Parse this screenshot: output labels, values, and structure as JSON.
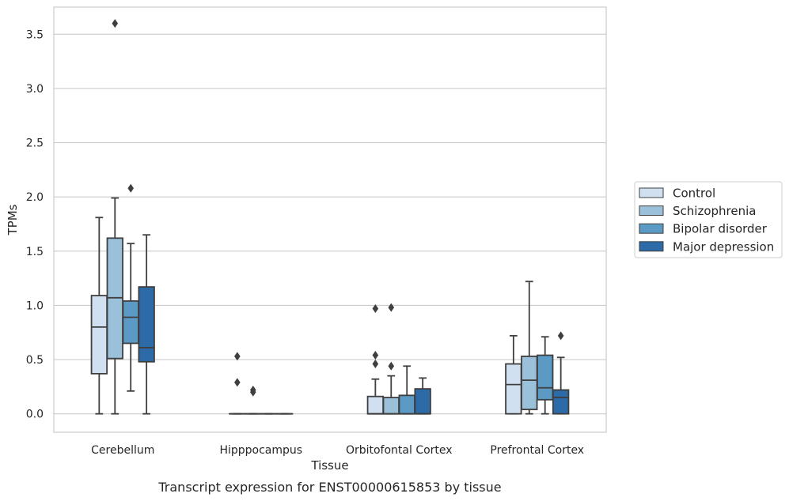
{
  "chart_data": {
    "type": "box",
    "caption": "Transcript expression for ENST00000615853 by tissue",
    "xlabel": "Tissue",
    "ylabel": "TPMs",
    "ylim": [
      -0.17,
      3.75
    ],
    "yticks": [
      0.0,
      0.5,
      1.0,
      1.5,
      2.0,
      2.5,
      3.0,
      3.5
    ],
    "ytick_labels": [
      "0.0",
      "0.5",
      "1.0",
      "1.5",
      "2.0",
      "2.5",
      "3.0",
      "3.5"
    ],
    "grid": "horizontal",
    "legend_placement": "right-center",
    "categories": [
      "Cerebellum",
      "Hipppocampus",
      "Orbitofontal Cortex",
      "Prefrontal Cortex"
    ],
    "series": [
      {
        "name": "Control",
        "color": "#d0e0f0",
        "boxes": [
          {
            "whislo": 0.0,
            "q1": 0.37,
            "med": 0.8,
            "q3": 1.09,
            "whishi": 1.81,
            "fliers": []
          },
          {
            "whislo": 0.0,
            "q1": 0.0,
            "med": 0.0,
            "q3": 0.0,
            "whishi": 0.0,
            "fliers": [
              0.53,
              0.29
            ]
          },
          {
            "whislo": 0.0,
            "q1": 0.0,
            "med": 0.0,
            "q3": 0.16,
            "whishi": 0.32,
            "fliers": [
              0.97,
              0.54,
              0.46
            ]
          },
          {
            "whislo": 0.0,
            "q1": 0.0,
            "med": 0.27,
            "q3": 0.46,
            "whishi": 0.72,
            "fliers": []
          }
        ]
      },
      {
        "name": "Schizophrenia",
        "color": "#9bc1da",
        "boxes": [
          {
            "whislo": 0.0,
            "q1": 0.51,
            "med": 1.07,
            "q3": 1.62,
            "whishi": 1.99,
            "fliers": [
              3.6
            ]
          },
          {
            "whislo": 0.0,
            "q1": 0.0,
            "med": 0.0,
            "q3": 0.0,
            "whishi": 0.0,
            "fliers": [
              0.22,
              0.2
            ]
          },
          {
            "whislo": 0.0,
            "q1": 0.0,
            "med": 0.0,
            "q3": 0.15,
            "whishi": 0.35,
            "fliers": [
              0.98,
              0.44
            ]
          },
          {
            "whislo": 0.0,
            "q1": 0.04,
            "med": 0.31,
            "q3": 0.53,
            "whishi": 1.22,
            "fliers": []
          }
        ]
      },
      {
        "name": "Bipolar disorder",
        "color": "#5b9ac4",
        "boxes": [
          {
            "whislo": 0.21,
            "q1": 0.65,
            "med": 0.89,
            "q3": 1.04,
            "whishi": 1.57,
            "fliers": [
              2.08
            ]
          },
          {
            "whislo": 0.0,
            "q1": 0.0,
            "med": 0.0,
            "q3": 0.0,
            "whishi": 0.0,
            "fliers": []
          },
          {
            "whislo": 0.0,
            "q1": 0.0,
            "med": 0.0,
            "q3": 0.17,
            "whishi": 0.44,
            "fliers": []
          },
          {
            "whislo": 0.0,
            "q1": 0.13,
            "med": 0.24,
            "q3": 0.54,
            "whishi": 0.71,
            "fliers": []
          }
        ]
      },
      {
        "name": "Major depression",
        "color": "#2c6ba8",
        "boxes": [
          {
            "whislo": 0.0,
            "q1": 0.48,
            "med": 0.61,
            "q3": 1.17,
            "whishi": 1.65,
            "fliers": []
          },
          {
            "whislo": 0.0,
            "q1": 0.0,
            "med": 0.0,
            "q3": 0.0,
            "whishi": 0.0,
            "fliers": []
          },
          {
            "whislo": 0.0,
            "q1": 0.0,
            "med": 0.0,
            "q3": 0.23,
            "whishi": 0.33,
            "fliers": []
          },
          {
            "whislo": 0.0,
            "q1": 0.0,
            "med": 0.15,
            "q3": 0.22,
            "whishi": 0.52,
            "fliers": [
              0.72
            ]
          }
        ]
      }
    ]
  }
}
